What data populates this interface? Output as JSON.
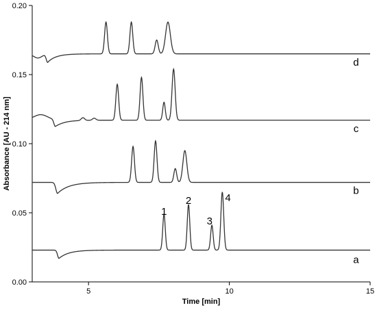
{
  "chart_data": {
    "type": "line",
    "title": "",
    "xlabel": "Time [min]",
    "ylabel": "Absorbance [AU - 214 nm]",
    "xlim": [
      3,
      15
    ],
    "ylim": [
      0,
      0.2
    ],
    "x_ticks": [
      5,
      10,
      15
    ],
    "x_tick_labels": [
      "5",
      "10",
      "15"
    ],
    "y_ticks": [
      0,
      0.05,
      0.1,
      0.15,
      0.2
    ],
    "y_tick_labels": [
      "0.00",
      "0.05",
      "0.10",
      "0.15",
      "0.20"
    ],
    "grid": false,
    "series": [
      {
        "name": "a",
        "baseline": 0.023,
        "line_color": "#333333",
        "label_x": 14.5,
        "label_y": 0.016,
        "features": [
          {
            "x": 3.95,
            "h": -0.006,
            "w": 0.05,
            "tail": 0.35
          },
          {
            "x": 7.68,
            "h": 0.026,
            "w": 0.045
          },
          {
            "x": 8.55,
            "h": 0.033,
            "w": 0.045
          },
          {
            "x": 9.38,
            "h": 0.018,
            "w": 0.045
          },
          {
            "x": 9.75,
            "h": 0.042,
            "w": 0.05
          }
        ]
      },
      {
        "name": "b",
        "baseline": 0.072,
        "line_color": "#333333",
        "label_x": 14.5,
        "label_y": 0.066,
        "features": [
          {
            "x": 3.9,
            "h": -0.008,
            "w": 0.06,
            "tail": 0.4
          },
          {
            "x": 6.58,
            "h": 0.026,
            "w": 0.05
          },
          {
            "x": 7.38,
            "h": 0.03,
            "w": 0.05
          },
          {
            "x": 8.08,
            "h": 0.01,
            "w": 0.05
          },
          {
            "x": 8.42,
            "h": 0.023,
            "w": 0.07
          }
        ]
      },
      {
        "name": "c",
        "baseline": 0.117,
        "line_color": "#333333",
        "label_x": 14.5,
        "label_y": 0.111,
        "features": [
          {
            "x": 3.3,
            "h": 0.004,
            "w": 0.25
          },
          {
            "x": 3.82,
            "h": -0.005,
            "w": 0.05,
            "tail": 0.3
          },
          {
            "x": 4.8,
            "h": 0.002,
            "w": 0.06
          },
          {
            "x": 5.2,
            "h": 0.0015,
            "w": 0.06
          },
          {
            "x": 6.02,
            "h": 0.026,
            "w": 0.05
          },
          {
            "x": 6.88,
            "h": 0.031,
            "w": 0.05
          },
          {
            "x": 7.68,
            "h": 0.013,
            "w": 0.045
          },
          {
            "x": 8.02,
            "h": 0.037,
            "w": 0.055
          }
        ]
      },
      {
        "name": "d",
        "baseline": 0.165,
        "line_color": "#333333",
        "label_x": 14.5,
        "label_y": 0.159,
        "features": [
          {
            "x": 3.2,
            "h": -0.003,
            "w": 0.15
          },
          {
            "x": 3.55,
            "h": -0.006,
            "w": 0.05,
            "tail": 0.3
          },
          {
            "x": 5.62,
            "h": 0.023,
            "w": 0.05
          },
          {
            "x": 6.52,
            "h": 0.023,
            "w": 0.05
          },
          {
            "x": 7.42,
            "h": 0.01,
            "w": 0.055
          },
          {
            "x": 7.82,
            "h": 0.023,
            "w": 0.085
          }
        ]
      }
    ],
    "peak_annotations": [
      {
        "text": "1",
        "x": 7.68,
        "y": 0.051
      },
      {
        "text": "2",
        "x": 8.55,
        "y": 0.059
      },
      {
        "text": "3",
        "x": 9.3,
        "y": 0.044
      },
      {
        "text": "4",
        "x": 9.95,
        "y": 0.061
      }
    ]
  }
}
